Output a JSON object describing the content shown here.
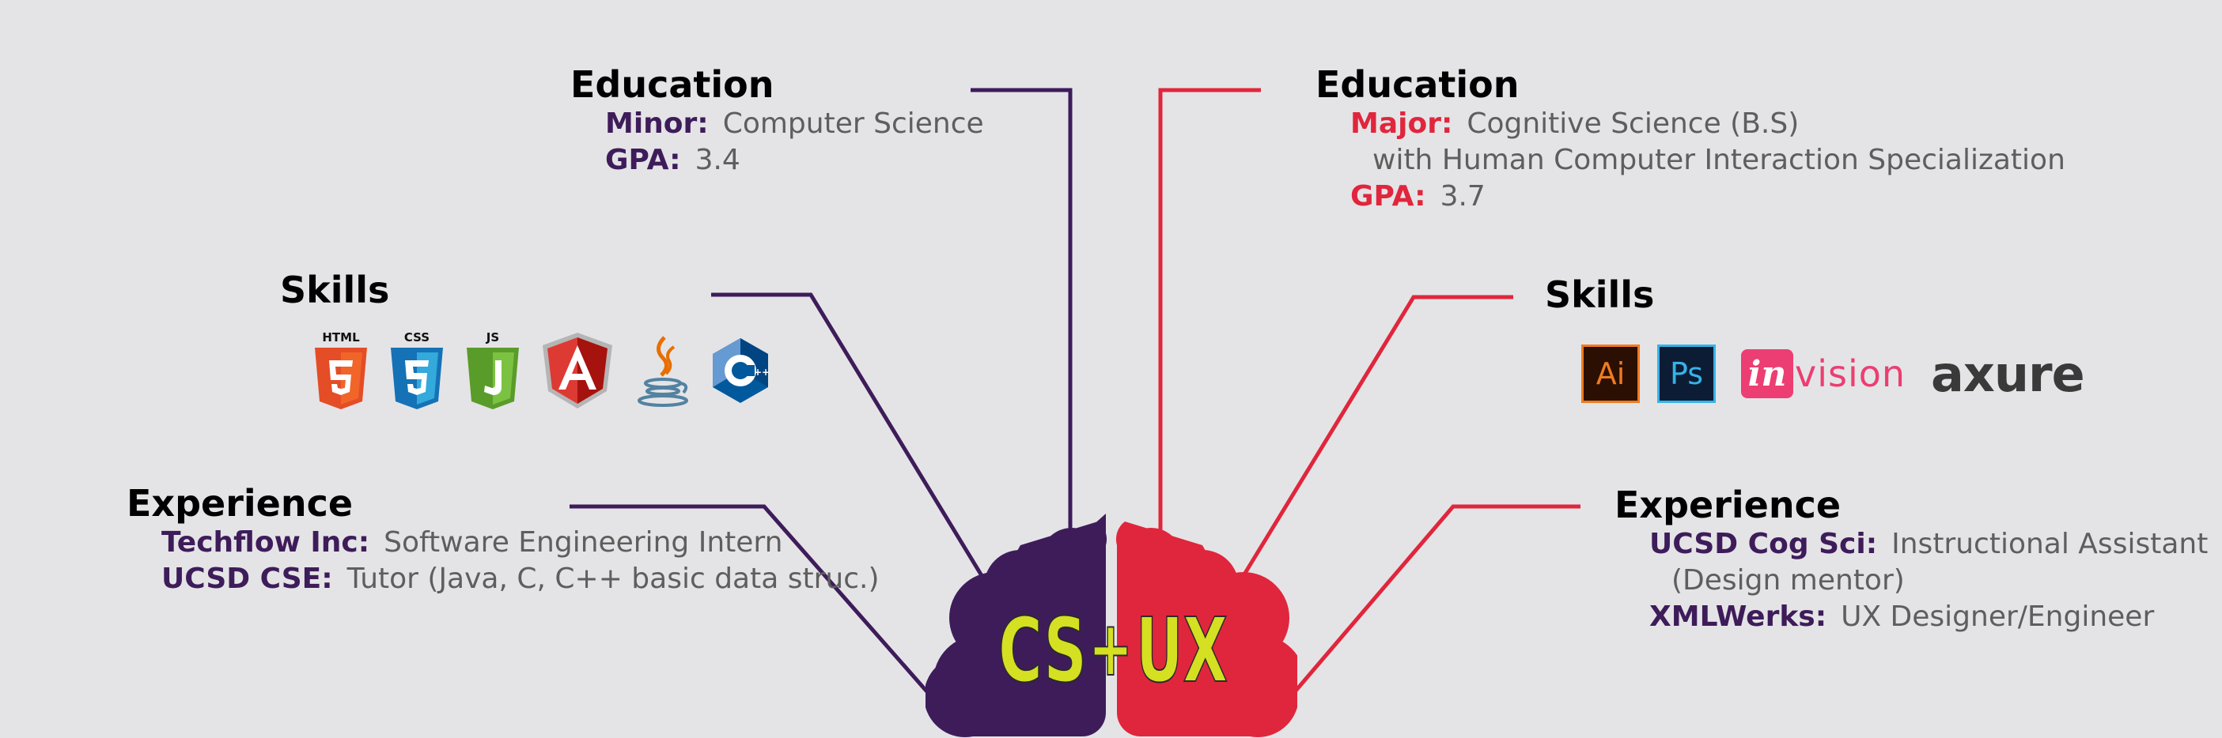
{
  "left": {
    "education": {
      "heading": "Education",
      "rows": [
        {
          "label": "Minor:",
          "value": "Computer Science"
        },
        {
          "label": "GPA:",
          "value": "3.4"
        }
      ]
    },
    "skills": {
      "heading": "Skills",
      "icons": [
        "html5-icon",
        "css3-icon",
        "javascript-icon",
        "angular-icon",
        "java-icon",
        "cpp-icon"
      ],
      "icon_captions": {
        "html": "HTML",
        "css": "CSS",
        "js": "JS"
      }
    },
    "experience": {
      "heading": "Experience",
      "rows": [
        {
          "label": "Techflow Inc:",
          "value": "Software Engineering Intern"
        },
        {
          "label": "UCSD CSE:",
          "value": "Tutor (Java, C, C++ basic data struc.)"
        }
      ]
    }
  },
  "right": {
    "education": {
      "heading": "Education",
      "major_label": "Major:",
      "major_value": "Cognitive Science (B.S)",
      "major_continuation": "with Human Computer Interaction Specialization",
      "gpa_label": "GPA:",
      "gpa_value": "3.7"
    },
    "skills": {
      "heading": "Skills",
      "ai_text": "Ai",
      "ps_text": "Ps",
      "invision_mark": "in",
      "invision_rest": "vision",
      "axure_text": "axure"
    },
    "experience": {
      "heading": "Experience",
      "row1_label": "UCSD Cog Sci:",
      "row1_value": "Instructional Assistant",
      "row1_continuation": "(Design mentor)",
      "row2_label": "XMLWerks:",
      "row2_value": "UX Designer/Engineer"
    }
  },
  "brain": {
    "left_text": "CS",
    "plus": "+",
    "right_text": "UX"
  },
  "colors": {
    "background": "#e4e4e6",
    "cs_purple": "#3e1c5a",
    "ux_red": "#e0263c",
    "brain_text_yellow": "#d4e021",
    "value_gray": "#5e5e5e"
  }
}
